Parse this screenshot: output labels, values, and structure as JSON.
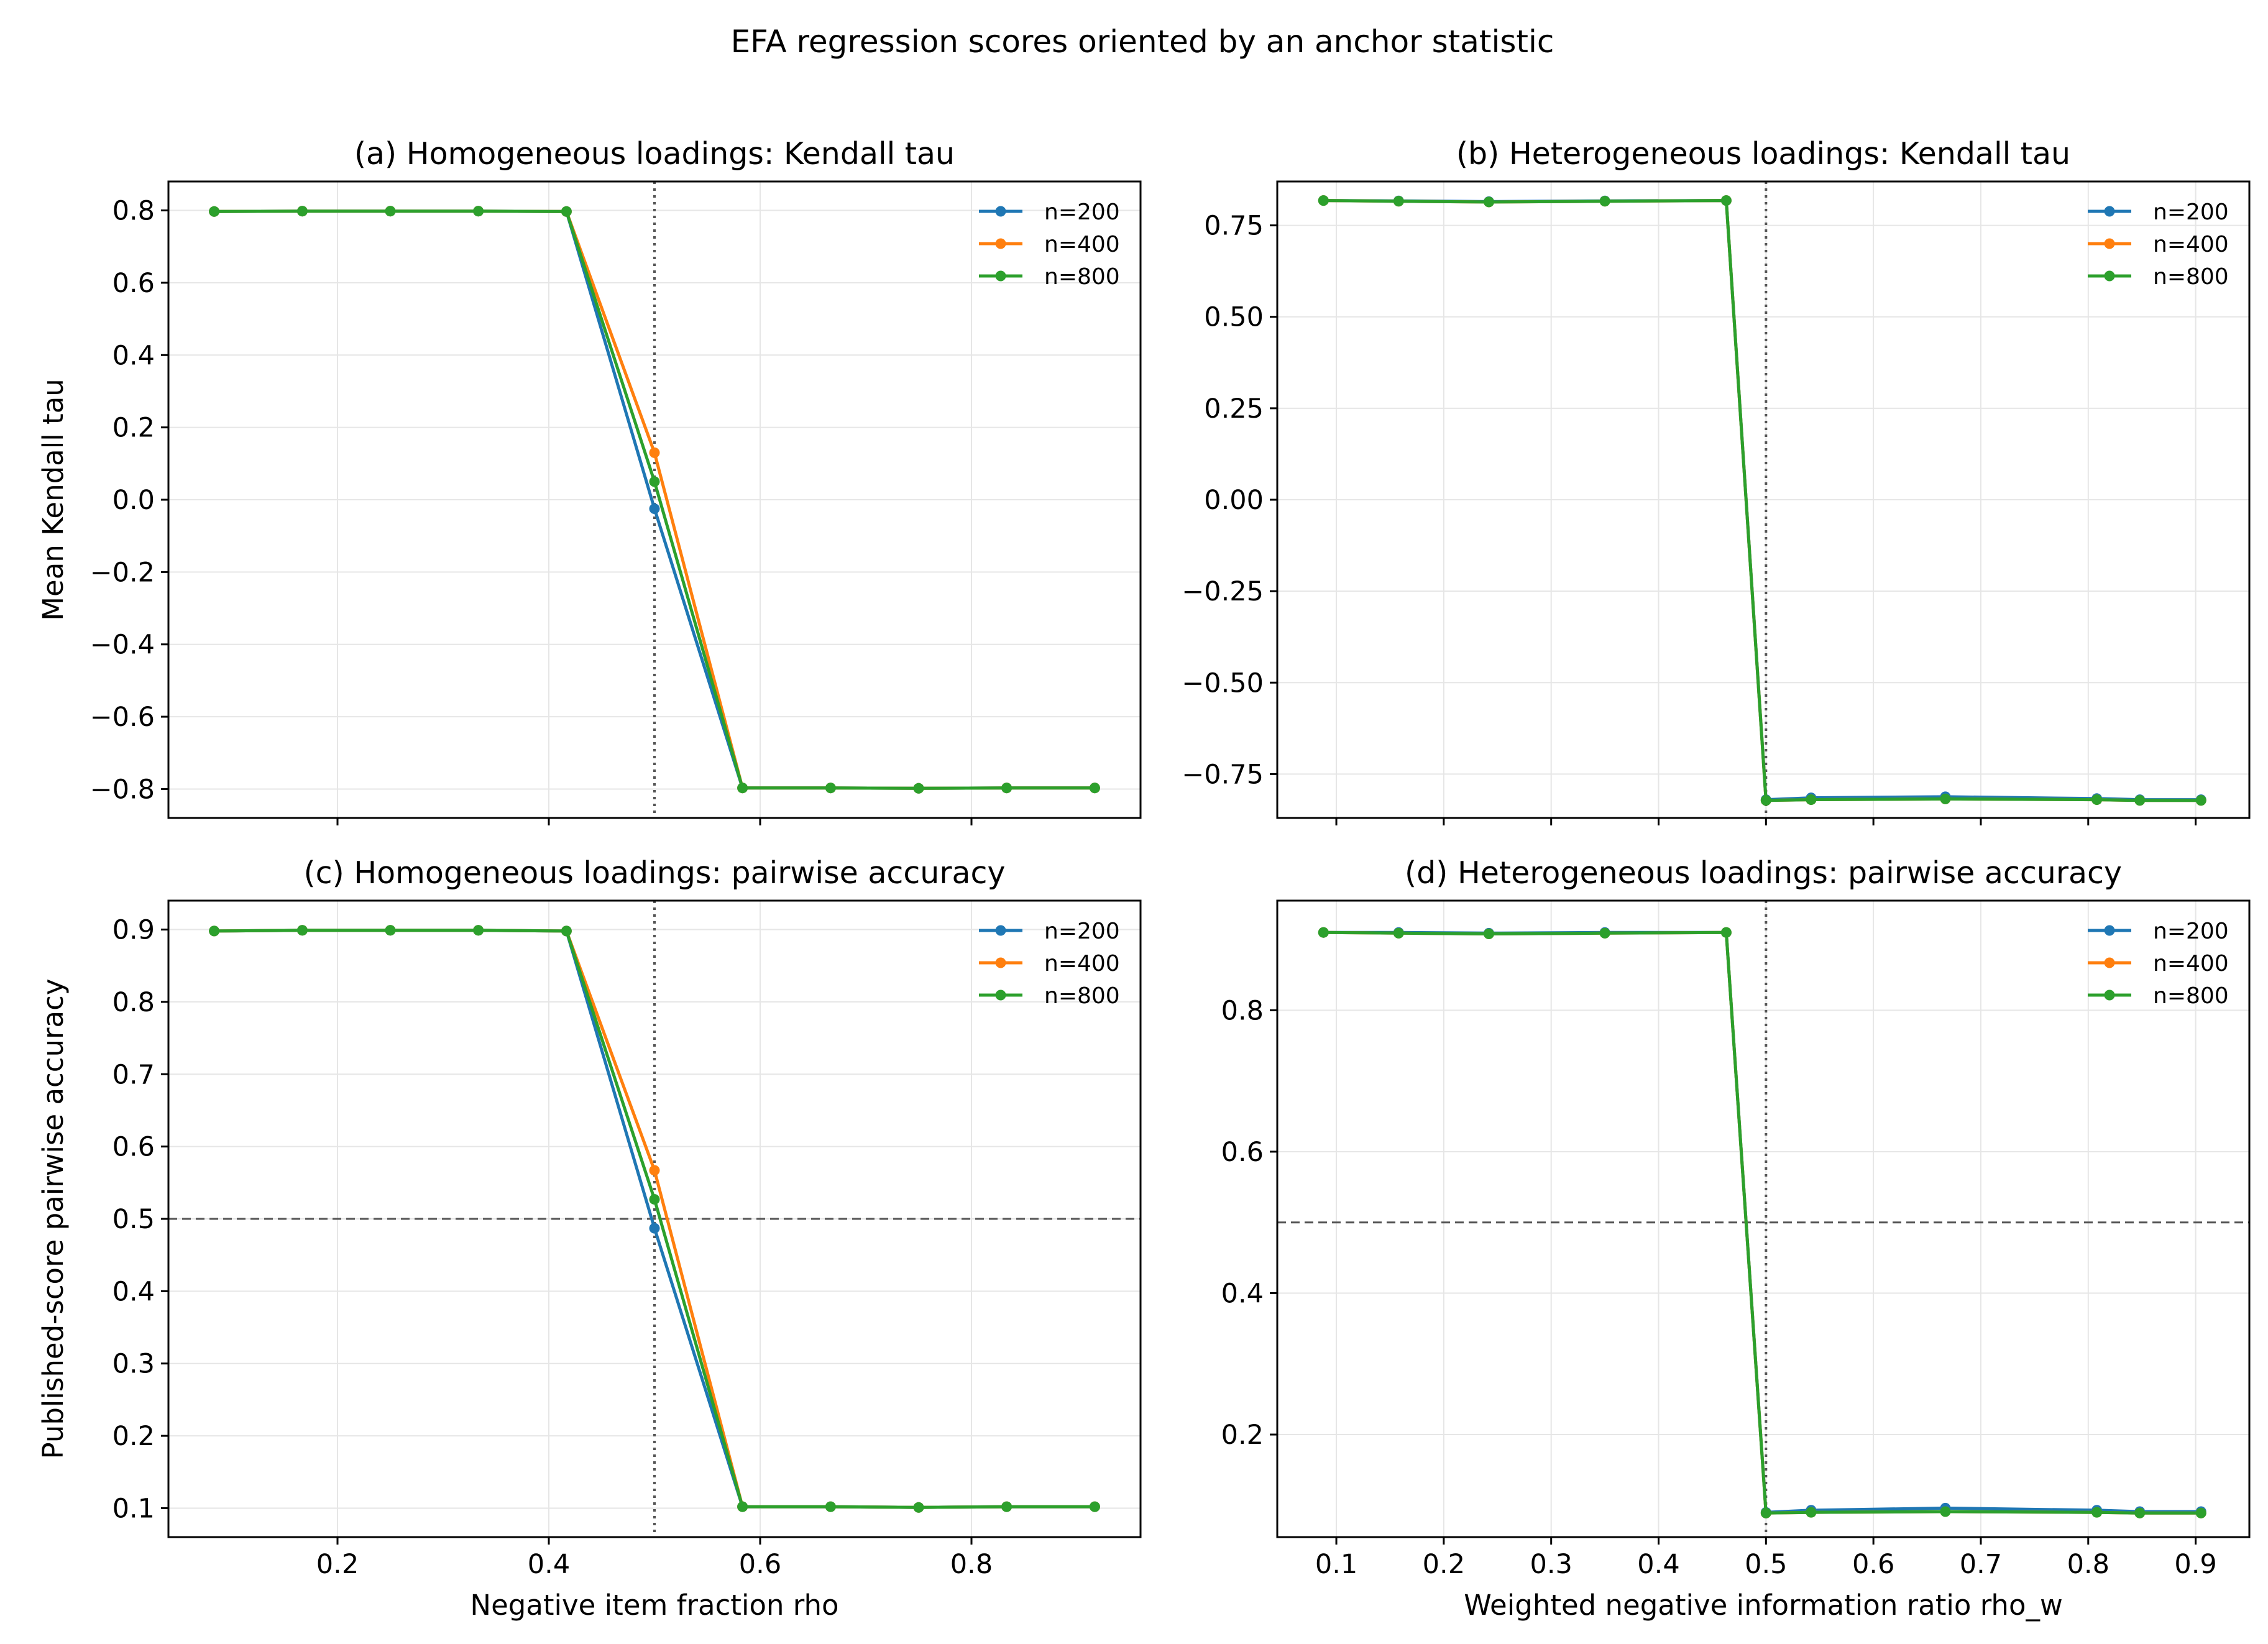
{
  "figure": {
    "title": "EFA regression scores oriented by an anchor statistic"
  },
  "colors": {
    "n200": "#1f77b4",
    "n400": "#ff7f0e",
    "n800": "#2ca02c",
    "grid": "#e6e6e6",
    "refline": "#555555"
  },
  "chart_data": [
    {
      "id": "a",
      "type": "line",
      "title": "(a) Homogeneous loadings: Kendall tau",
      "xlabel": "",
      "ylabel": "Mean Kendall tau",
      "xlim": [
        0.04,
        0.96
      ],
      "ylim": [
        -0.88,
        0.88
      ],
      "xticks": [
        0.2,
        0.4,
        0.6,
        0.8
      ],
      "xtick_labels": [
        "",
        "",
        "",
        ""
      ],
      "yticks": [
        0.8,
        0.6,
        0.4,
        0.2,
        0.0,
        -0.2,
        -0.4,
        -0.6,
        -0.8
      ],
      "ytick_labels": [
        "0.8",
        "0.6",
        "0.4",
        "0.2",
        "0.0",
        "−0.2",
        "−0.4",
        "−0.6",
        "−0.8"
      ],
      "vline": 0.5,
      "hline": null,
      "legend": "upper right",
      "grid": true,
      "x": [
        0.0833,
        0.1667,
        0.25,
        0.3333,
        0.4167,
        0.5,
        0.5833,
        0.6667,
        0.75,
        0.8333,
        0.9167
      ],
      "series": [
        {
          "name": "n=200",
          "values": [
            0.797,
            0.798,
            0.798,
            0.798,
            0.797,
            -0.025,
            -0.797,
            -0.797,
            -0.798,
            -0.797,
            -0.797
          ]
        },
        {
          "name": "n=400",
          "values": [
            0.797,
            0.798,
            0.798,
            0.798,
            0.797,
            0.13,
            -0.797,
            -0.797,
            -0.798,
            -0.797,
            -0.797
          ]
        },
        {
          "name": "n=800",
          "values": [
            0.797,
            0.798,
            0.798,
            0.798,
            0.797,
            0.05,
            -0.797,
            -0.797,
            -0.798,
            -0.797,
            -0.797
          ]
        }
      ]
    },
    {
      "id": "b",
      "type": "line",
      "title": "(b) Heterogeneous loadings: Kendall tau",
      "xlabel": "",
      "ylabel": "",
      "xlim": [
        0.045,
        0.95
      ],
      "ylim": [
        -0.87,
        0.87
      ],
      "xticks": [
        0.1,
        0.2,
        0.3,
        0.4,
        0.5,
        0.6,
        0.7,
        0.8,
        0.9
      ],
      "xtick_labels": [
        "",
        "",
        "",
        "",
        "",
        "",
        "",
        "",
        ""
      ],
      "yticks": [
        0.75,
        0.5,
        0.25,
        0.0,
        -0.25,
        -0.5,
        -0.75
      ],
      "ytick_labels": [
        "0.75",
        "0.50",
        "0.25",
        "0.00",
        "−0.25",
        "−0.50",
        "−0.75"
      ],
      "vline": 0.5,
      "hline": null,
      "legend": "upper right",
      "grid": true,
      "x": [
        0.088,
        0.158,
        0.242,
        0.35,
        0.463,
        0.5,
        0.542,
        0.667,
        0.808,
        0.848,
        0.905
      ],
      "series": [
        {
          "name": "n=200",
          "values": [
            0.818,
            0.817,
            0.815,
            0.817,
            0.818,
            -0.82,
            -0.815,
            -0.812,
            -0.817,
            -0.82,
            -0.82
          ]
        },
        {
          "name": "n=400",
          "values": [
            0.818,
            0.816,
            0.814,
            0.816,
            0.818,
            -0.822,
            -0.82,
            -0.818,
            -0.82,
            -0.822,
            -0.822
          ]
        },
        {
          "name": "n=800",
          "values": [
            0.818,
            0.816,
            0.814,
            0.816,
            0.818,
            -0.822,
            -0.82,
            -0.818,
            -0.82,
            -0.822,
            -0.822
          ]
        }
      ]
    },
    {
      "id": "c",
      "type": "line",
      "title": "(c) Homogeneous loadings: pairwise accuracy",
      "xlabel": "Negative item fraction rho",
      "ylabel": "Published-score pairwise accuracy",
      "xlim": [
        0.04,
        0.96
      ],
      "ylim": [
        0.06,
        0.94
      ],
      "xticks": [
        0.2,
        0.4,
        0.6,
        0.8
      ],
      "xtick_labels": [
        "0.2",
        "0.4",
        "0.6",
        "0.8"
      ],
      "yticks": [
        0.9,
        0.8,
        0.7,
        0.6,
        0.5,
        0.4,
        0.3,
        0.2,
        0.1
      ],
      "ytick_labels": [
        "0.9",
        "0.8",
        "0.7",
        "0.6",
        "0.5",
        "0.4",
        "0.3",
        "0.2",
        "0.1"
      ],
      "vline": 0.5,
      "hline": 0.5,
      "legend": "upper right",
      "grid": true,
      "x": [
        0.0833,
        0.1667,
        0.25,
        0.3333,
        0.4167,
        0.5,
        0.5833,
        0.6667,
        0.75,
        0.8333,
        0.9167
      ],
      "series": [
        {
          "name": "n=200",
          "values": [
            0.898,
            0.899,
            0.899,
            0.899,
            0.898,
            0.487,
            0.102,
            0.102,
            0.101,
            0.102,
            0.102
          ]
        },
        {
          "name": "n=400",
          "values": [
            0.898,
            0.899,
            0.899,
            0.899,
            0.898,
            0.567,
            0.102,
            0.102,
            0.101,
            0.102,
            0.102
          ]
        },
        {
          "name": "n=800",
          "values": [
            0.898,
            0.899,
            0.899,
            0.899,
            0.898,
            0.527,
            0.102,
            0.102,
            0.101,
            0.102,
            0.102
          ]
        }
      ]
    },
    {
      "id": "d",
      "type": "line",
      "title": "(d) Heterogeneous loadings: pairwise accuracy",
      "xlabel": "Weighted negative information ratio rho_w",
      "ylabel": "",
      "xlim": [
        0.045,
        0.95
      ],
      "ylim": [
        0.055,
        0.955
      ],
      "xticks": [
        0.1,
        0.2,
        0.3,
        0.4,
        0.5,
        0.6,
        0.7,
        0.8,
        0.9
      ],
      "xtick_labels": [
        "0.1",
        "0.2",
        "0.3",
        "0.4",
        "0.5",
        "0.6",
        "0.7",
        "0.8",
        "0.9"
      ],
      "yticks": [
        0.8,
        0.6,
        0.4,
        0.2
      ],
      "ytick_labels": [
        "0.8",
        "0.6",
        "0.4",
        "0.2"
      ],
      "vline": 0.5,
      "hline": 0.5,
      "legend": "upper right",
      "grid": true,
      "x": [
        0.088,
        0.158,
        0.242,
        0.35,
        0.463,
        0.5,
        0.542,
        0.667,
        0.808,
        0.848,
        0.905
      ],
      "series": [
        {
          "name": "n=200",
          "values": [
            0.91,
            0.91,
            0.909,
            0.91,
            0.91,
            0.09,
            0.093,
            0.096,
            0.093,
            0.091,
            0.091
          ]
        },
        {
          "name": "n=400",
          "values": [
            0.91,
            0.909,
            0.908,
            0.909,
            0.91,
            0.089,
            0.09,
            0.091,
            0.09,
            0.089,
            0.089
          ]
        },
        {
          "name": "n=800",
          "values": [
            0.91,
            0.909,
            0.908,
            0.909,
            0.91,
            0.089,
            0.09,
            0.091,
            0.09,
            0.089,
            0.089
          ]
        }
      ]
    }
  ]
}
